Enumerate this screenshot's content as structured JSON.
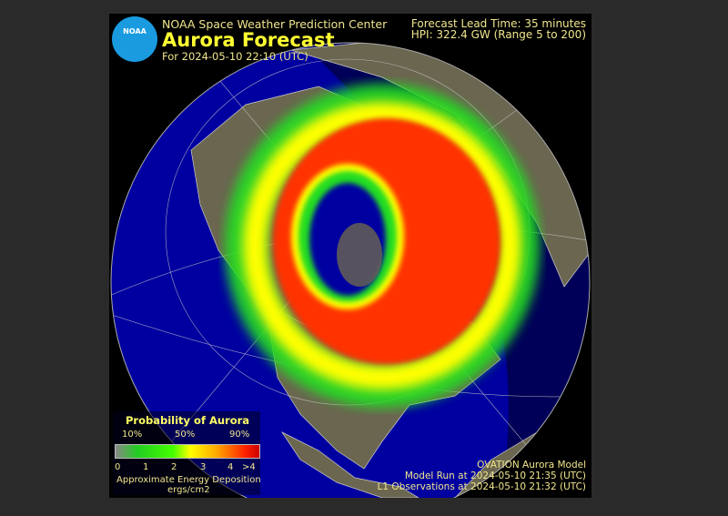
{
  "header": {
    "logo_text": "NOAA",
    "organization": "NOAA Space Weather Prediction Center",
    "title": "Aurora Forecast",
    "forecast_for": "For 2024-05-10 22:10 (UTC)",
    "lead_time": "Forecast Lead Time:  35 minutes",
    "hpi": "HPI: 322.4 GW (Range 5 to 200)"
  },
  "legend": {
    "title": "Probability of Aurora",
    "percent_labels": [
      "10%",
      "50%",
      "90%"
    ],
    "energy_ticks": [
      "0",
      "1",
      "2",
      "3",
      "4",
      ">4"
    ],
    "energy_label": "Approximate Energy Deposition",
    "energy_units": "ergs/cm2",
    "colors": [
      "#888888",
      "#22cc22",
      "#ffff00",
      "#ffaa00",
      "#ff2200"
    ]
  },
  "footer": {
    "model": "OVATION Aurora Model",
    "model_run": "Model Run at 2024-05-10 21:35 (UTC)",
    "l1_observations": "L1 Observations at 2024-05-10 21:32 (UTC)"
  },
  "colors": {
    "ocean": "#0000a0",
    "land": "#6b6650",
    "aurora_high": "#ff3300",
    "aurora_low": "#22dd22",
    "text": "#f0e68c"
  }
}
